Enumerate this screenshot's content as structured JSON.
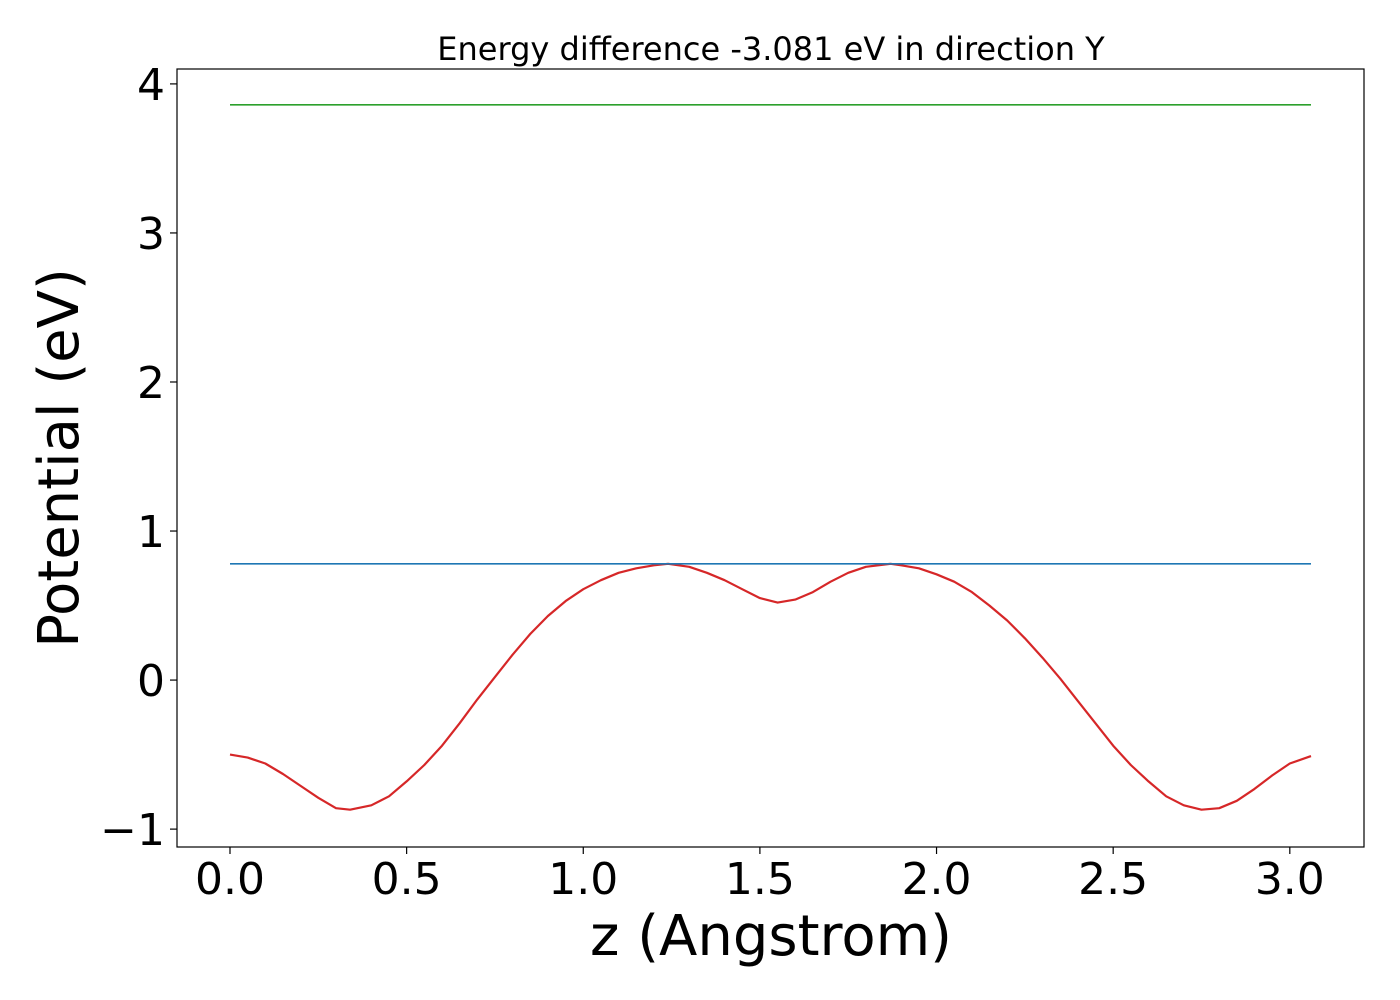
{
  "chart_data": {
    "type": "line",
    "title": "Energy difference -3.081 eV in direction Y",
    "xlabel": "z (Angstrom)",
    "ylabel": "Potential (eV)",
    "xlim": [
      -0.15,
      3.21
    ],
    "ylim": [
      -1.12,
      4.1
    ],
    "xticks": [
      0.0,
      0.5,
      1.0,
      1.5,
      2.0,
      2.5,
      3.0
    ],
    "xtick_labels": [
      "0.0",
      "0.5",
      "1.0",
      "1.5",
      "2.0",
      "2.5",
      "3.0"
    ],
    "yticks": [
      -1,
      0,
      1,
      2,
      3,
      4
    ],
    "ytick_labels": [
      "−1",
      "0",
      "1",
      "2",
      "3",
      "4"
    ],
    "grid": false,
    "series": [
      {
        "color": "#d62728",
        "x": [
          0.0,
          0.05,
          0.1,
          0.15,
          0.2,
          0.25,
          0.3,
          0.34,
          0.4,
          0.45,
          0.5,
          0.55,
          0.6,
          0.65,
          0.7,
          0.75,
          0.8,
          0.85,
          0.9,
          0.95,
          1.0,
          1.05,
          1.1,
          1.15,
          1.2,
          1.24,
          1.3,
          1.35,
          1.4,
          1.45,
          1.5,
          1.55,
          1.6,
          1.65,
          1.7,
          1.75,
          1.8,
          1.87,
          1.9,
          1.95,
          2.0,
          2.05,
          2.1,
          2.15,
          2.2,
          2.25,
          2.3,
          2.35,
          2.4,
          2.45,
          2.5,
          2.55,
          2.6,
          2.65,
          2.7,
          2.75,
          2.8,
          2.85,
          2.9,
          2.95,
          3.0,
          3.06
        ],
        "y": [
          -0.5,
          -0.52,
          -0.56,
          -0.63,
          -0.71,
          -0.79,
          -0.86,
          -0.87,
          -0.84,
          -0.78,
          -0.68,
          -0.57,
          -0.44,
          -0.29,
          -0.13,
          0.02,
          0.17,
          0.31,
          0.43,
          0.53,
          0.61,
          0.67,
          0.72,
          0.75,
          0.77,
          0.78,
          0.76,
          0.72,
          0.67,
          0.61,
          0.55,
          0.52,
          0.54,
          0.59,
          0.66,
          0.72,
          0.76,
          0.78,
          0.77,
          0.75,
          0.71,
          0.66,
          0.59,
          0.5,
          0.4,
          0.28,
          0.15,
          0.01,
          -0.14,
          -0.29,
          -0.44,
          -0.57,
          -0.68,
          -0.78,
          -0.84,
          -0.87,
          -0.86,
          -0.81,
          -0.73,
          -0.64,
          -0.56,
          -0.51
        ]
      },
      {
        "color": "#1f77b4",
        "x": [
          0.0,
          3.06
        ],
        "y": [
          0.78,
          0.78
        ]
      },
      {
        "color": "#2ca02c",
        "x": [
          0.0,
          3.06
        ],
        "y": [
          3.86,
          3.86
        ]
      }
    ]
  }
}
